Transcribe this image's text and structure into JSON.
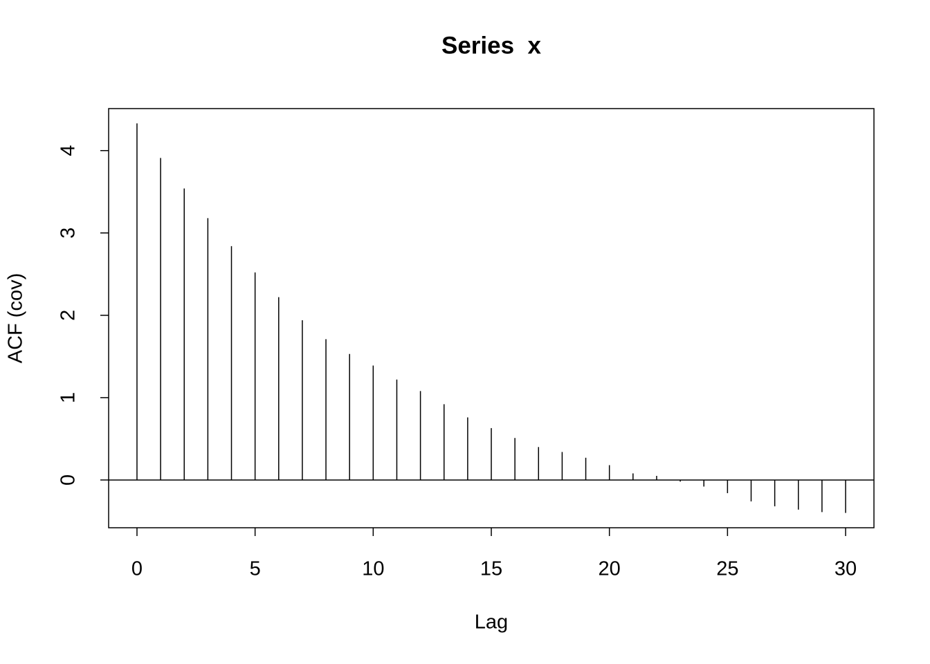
{
  "chart_data": {
    "type": "stem",
    "title": "Series  x",
    "x_label": "Lag",
    "y_label": "ACF (cov)",
    "x": [
      0,
      1,
      2,
      3,
      4,
      5,
      6,
      7,
      8,
      9,
      10,
      11,
      12,
      13,
      14,
      15,
      16,
      17,
      18,
      19,
      20,
      21,
      22,
      23,
      24,
      25,
      26,
      27,
      28,
      29,
      30
    ],
    "values": [
      4.33,
      3.91,
      3.54,
      3.18,
      2.84,
      2.52,
      2.22,
      1.94,
      1.71,
      1.53,
      1.39,
      1.22,
      1.08,
      0.92,
      0.76,
      0.63,
      0.51,
      0.4,
      0.34,
      0.27,
      0.18,
      0.08,
      0.05,
      -0.02,
      -0.08,
      -0.16,
      -0.26,
      -0.32,
      -0.36,
      -0.39,
      -0.4
    ],
    "color": "#000000",
    "xlim": [
      -1.2,
      31.2
    ],
    "ylim": [
      -0.58,
      4.51
    ],
    "xticks": [
      0,
      5,
      10,
      15,
      20,
      25,
      30
    ],
    "yticks": [
      0,
      1,
      2,
      3,
      4
    ]
  }
}
